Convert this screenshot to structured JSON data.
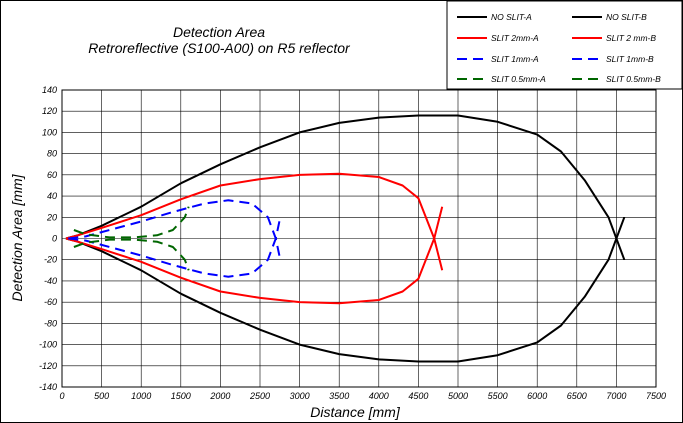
{
  "chart_data": {
    "type": "line",
    "title": "Detection Area",
    "subtitle": "Retroreflective (S100-A00) on R5 reflector",
    "xlabel": "Distance [mm]",
    "ylabel": "Detection Area [mm]",
    "xlim": [
      0,
      7500
    ],
    "ylim": [
      -140,
      140
    ],
    "xticks": [
      0,
      500,
      1000,
      1500,
      2000,
      2500,
      3000,
      3500,
      4000,
      4500,
      5000,
      5500,
      6000,
      6500,
      7000,
      7500
    ],
    "yticks": [
      -140,
      -120,
      -100,
      -80,
      -60,
      -40,
      -20,
      0,
      20,
      40,
      60,
      80,
      100,
      120,
      140
    ],
    "xtick_labels": [
      "0",
      "500",
      "1000",
      "1500",
      "2000",
      "2500",
      "3000",
      "3500",
      "4000",
      "4500",
      "5000",
      "5500",
      "6000",
      "6500",
      "7000",
      "7500"
    ],
    "ytick_labels": [
      "-140",
      "-120",
      "-100",
      "-80",
      "-60",
      "-40",
      "-20",
      "0",
      "20",
      "40",
      "60",
      "80",
      "100",
      "120",
      "140"
    ],
    "grid": true,
    "legend_position": "top-right",
    "series": [
      {
        "name": "NO SLIT-A",
        "color": "#000000",
        "dash": "solid",
        "x": [
          50,
          200,
          500,
          1000,
          1500,
          2000,
          2500,
          3000,
          3500,
          4000,
          4500,
          5000,
          5500,
          6000,
          6300,
          6600,
          6900,
          7000,
          7100
        ],
        "y": [
          0,
          3,
          12,
          30,
          52,
          70,
          86,
          100,
          109,
          114,
          116,
          116,
          110,
          98,
          82,
          55,
          20,
          0,
          -20
        ]
      },
      {
        "name": "NO SLIT-B",
        "color": "#000000",
        "dash": "solid",
        "x": [
          50,
          200,
          500,
          1000,
          1500,
          2000,
          2500,
          3000,
          3500,
          4000,
          4500,
          5000,
          5500,
          6000,
          6300,
          6600,
          6900,
          7000,
          7100
        ],
        "y": [
          0,
          -3,
          -12,
          -30,
          -52,
          -70,
          -86,
          -100,
          -109,
          -114,
          -116,
          -116,
          -110,
          -98,
          -82,
          -55,
          -20,
          0,
          20
        ]
      },
      {
        "name": "SLIT 2mm-A",
        "color": "#ff0000",
        "dash": "solid",
        "x": [
          50,
          200,
          500,
          1000,
          1500,
          2000,
          2500,
          3000,
          3500,
          4000,
          4300,
          4500,
          4700,
          4800
        ],
        "y": [
          0,
          3,
          10,
          22,
          37,
          50,
          56,
          60,
          61,
          58,
          50,
          38,
          0,
          -30
        ]
      },
      {
        "name": "SLIT 2 mm-B",
        "color": "#ff0000",
        "dash": "solid",
        "x": [
          50,
          200,
          500,
          1000,
          1500,
          2000,
          2500,
          3000,
          3500,
          4000,
          4300,
          4500,
          4700,
          4800
        ],
        "y": [
          0,
          -3,
          -10,
          -22,
          -37,
          -50,
          -56,
          -60,
          -61,
          -58,
          -50,
          -38,
          0,
          30
        ]
      },
      {
        "name": "SLIT 1mm-A",
        "color": "#0000ff",
        "dash": "dash",
        "x": [
          80,
          300,
          600,
          1000,
          1400,
          1800,
          2100,
          2400,
          2600,
          2700,
          2750
        ],
        "y": [
          0,
          2,
          8,
          16,
          25,
          33,
          36,
          33,
          20,
          0,
          -18
        ]
      },
      {
        "name": "SLIT 1mm-B",
        "color": "#0000ff",
        "dash": "dash",
        "x": [
          80,
          300,
          600,
          1000,
          1400,
          1800,
          2100,
          2400,
          2600,
          2700,
          2750
        ],
        "y": [
          0,
          -2,
          -8,
          -16,
          -25,
          -33,
          -36,
          -33,
          -20,
          0,
          18
        ]
      },
      {
        "name": "SLIT 0.5mm-A",
        "color": "#006600",
        "dash": "dash",
        "x": [
          150,
          300,
          600,
          900,
          1200,
          1400,
          1550,
          1600
        ],
        "y": [
          8,
          4,
          1,
          1,
          3,
          8,
          20,
          30
        ]
      },
      {
        "name": "SLIT 0.5mm-B",
        "color": "#006600",
        "dash": "dash",
        "x": [
          150,
          300,
          600,
          900,
          1200,
          1400,
          1550,
          1600
        ],
        "y": [
          -8,
          -4,
          -1,
          -1,
          -3,
          -8,
          -20,
          -30
        ]
      }
    ]
  }
}
